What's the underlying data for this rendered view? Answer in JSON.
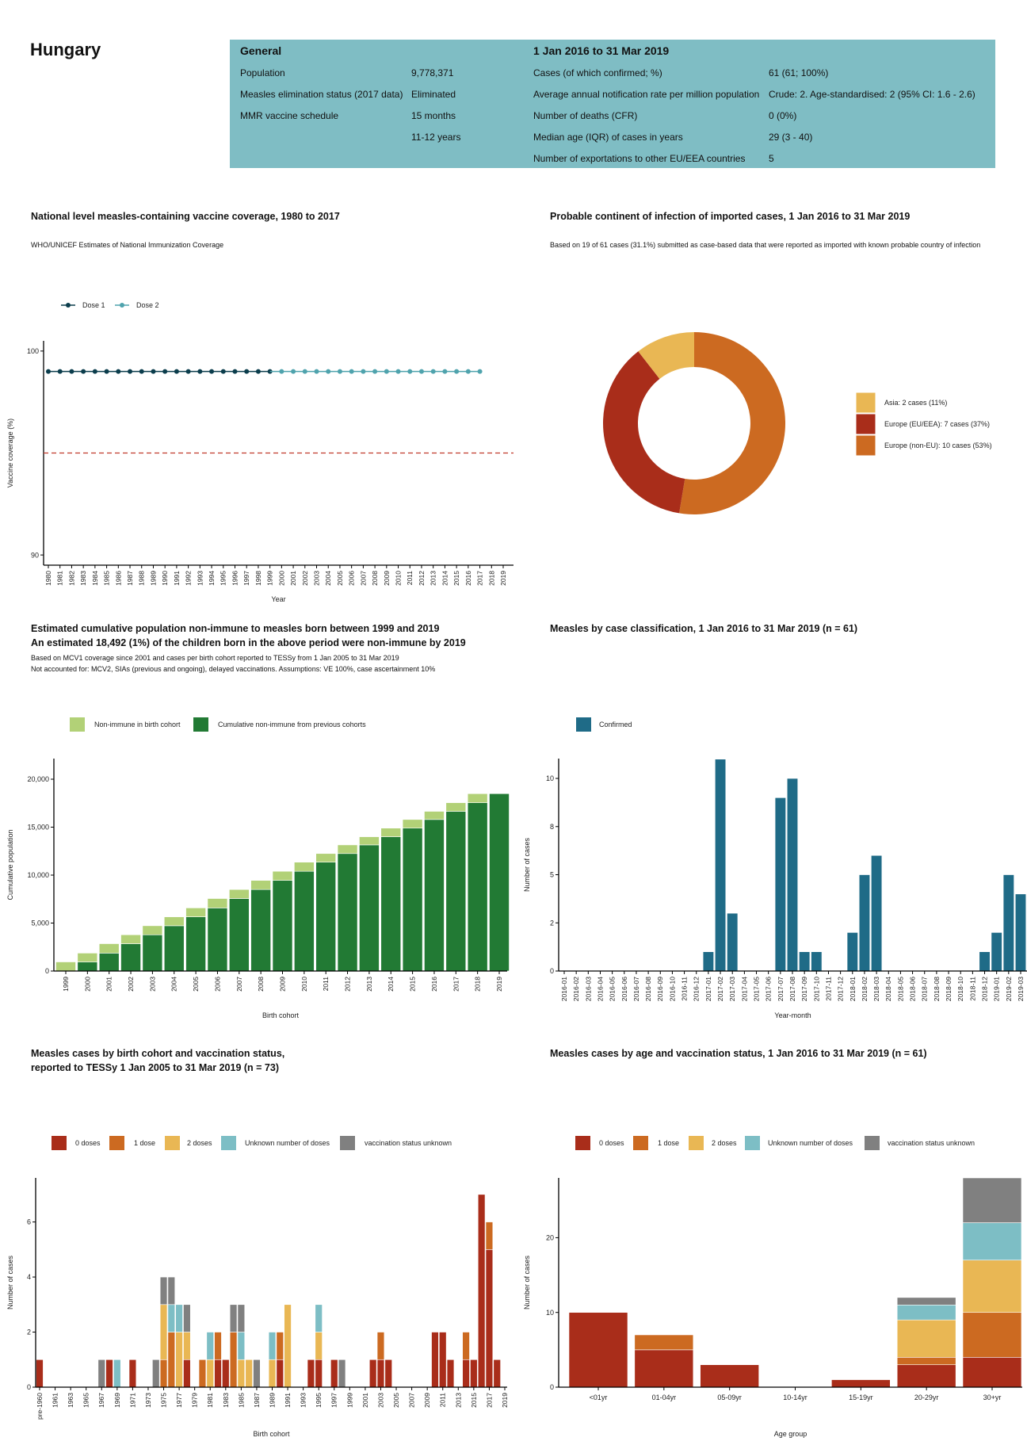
{
  "country": "Hungary",
  "info": {
    "general_header": "General",
    "period_header": "1 Jan 2016 to 31 Mar 2019",
    "general_rows": [
      {
        "label": "Population",
        "value": "9,778,371"
      },
      {
        "label": "Measles elimination status (2017 data)",
        "value": "Eliminated"
      },
      {
        "label": "MMR vaccine schedule",
        "value": "15 months"
      },
      {
        "label": "",
        "value": "11-12 years"
      }
    ],
    "period_rows": [
      {
        "label": "Cases (of which confirmed; %)",
        "value": "61 (61; 100%)"
      },
      {
        "label": "Average annual notification rate per million population",
        "value": "Crude: 2. Age-standardised: 2 (95% CI: 1.6 - 2.6)"
      },
      {
        "label": "Number of deaths (CFR)",
        "value": "0 (0%)"
      },
      {
        "label": "Median age (IQR) of cases in years",
        "value": "29 (3 - 40)"
      },
      {
        "label": "Number of exportations to other EU/EEA countries",
        "value": "5"
      }
    ],
    "bg_color": "#7fbdc4"
  },
  "chart_data": [
    {
      "type": "line",
      "title": "National level measles-containing vaccine coverage, 1980 to 2017",
      "subtitle": "WHO/UNICEF Estimates of National Immunization Coverage",
      "xlabel": "Year",
      "ylabel": "Vaccine coverage (%)",
      "ylim": [
        89.5,
        100.5
      ],
      "y_ticks": [
        90,
        100
      ],
      "y_tick_labels": [
        "90",
        "100"
      ],
      "x_tick_labels": [
        "1980",
        "1981",
        "1982",
        "1983",
        "1984",
        "1985",
        "1986",
        "1987",
        "1988",
        "1989",
        "1990",
        "1991",
        "1992",
        "1993",
        "1994",
        "1995",
        "1996",
        "1997",
        "1998",
        "1999",
        "2000",
        "2001",
        "2002",
        "2003",
        "2004",
        "2005",
        "2006",
        "2007",
        "2008",
        "2009",
        "2010",
        "2011",
        "2012",
        "2013",
        "2014",
        "2015",
        "2016",
        "2017",
        "2018",
        "2019"
      ],
      "reference_line": {
        "y": 95,
        "color": "#c0392b",
        "style": "dashed"
      },
      "legend_placement": "top-left",
      "series": [
        {
          "name": "Dose 1",
          "color": "#0b3d4c",
          "x": [
            1980,
            1981,
            1982,
            1983,
            1984,
            1985,
            1986,
            1987,
            1988,
            1989,
            1990,
            1991,
            1992,
            1993,
            1994,
            1995,
            1996,
            1997,
            1998,
            1999
          ],
          "y": [
            99,
            99,
            99,
            99,
            99,
            99,
            99,
            99,
            99,
            99,
            99,
            99,
            99,
            99,
            99,
            99,
            99,
            99,
            99,
            99
          ]
        },
        {
          "name": "Dose 2",
          "color": "#4fa3ad",
          "x": [
            2000,
            2001,
            2002,
            2003,
            2004,
            2005,
            2006,
            2007,
            2008,
            2009,
            2010,
            2011,
            2012,
            2013,
            2014,
            2015,
            2016,
            2017
          ],
          "y": [
            99,
            99,
            99,
            99,
            99,
            99,
            99,
            99,
            99,
            99,
            99,
            99,
            99,
            99,
            99,
            99,
            99,
            99
          ]
        }
      ]
    },
    {
      "type": "pie",
      "title": "Probable continent of infection of imported cases, 1 Jan 2016 to 31 Mar 2019",
      "subtitle": "Based on 19 of 61 cases (31.1%) submitted as case-based data that were reported as imported with known probable country of infection",
      "donut": true,
      "legend_placement": "right",
      "slices": [
        {
          "label": "Europe (non-EU): 10 cases (53%)",
          "value": 10,
          "color": "#cc6a21"
        },
        {
          "label": "Europe (EU/EEA): 7 cases (37%)",
          "value": 7,
          "color": "#a92d1a"
        },
        {
          "label": "Asia: 2 cases (11%)",
          "value": 2,
          "color": "#e9b754"
        }
      ],
      "legend_order": [
        2,
        1,
        0
      ]
    },
    {
      "type": "bar",
      "stacked": true,
      "title": "Estimated cumulative population non-immune to measles born between 1999 and 2019",
      "title2": "An estimated 18,492 (1%) of the children born in the above period were non-immune by 2019",
      "subtitle": "Based on MCV1 coverage since 2001 and cases per birth cohort reported to TESSy from 1 Jan 2005 to 31 Mar 2019",
      "subtitle2": "Not accounted for: MCV2, SIAs (previous and ongoing), delayed vaccinations. Assumptions: VE 100%, case ascertainment 10%",
      "xlabel": "Birth cohort",
      "ylabel": "Cumulative population",
      "ylim": [
        0,
        22150
      ],
      "y_ticks": [
        0,
        5000,
        10000,
        15000,
        20000
      ],
      "y_tick_labels": [
        "0",
        "5,000",
        "10,000",
        "15,000",
        "20,000"
      ],
      "legend_placement": "top-left",
      "categories": [
        "1999",
        "2000",
        "2001",
        "2002",
        "2003",
        "2004",
        "2005",
        "2006",
        "2007",
        "2008",
        "2009",
        "2010",
        "2011",
        "2012",
        "2013",
        "2014",
        "2015",
        "2016",
        "2017",
        "2018",
        "2019"
      ],
      "series": [
        {
          "name": "Cumulative non-immune from previous cohorts",
          "color": "#227a34",
          "values": [
            0,
            950,
            1870,
            2850,
            3780,
            4720,
            5650,
            6580,
            7560,
            8500,
            9450,
            10400,
            11350,
            12250,
            13150,
            14000,
            14900,
            15800,
            16650,
            17550,
            18492
          ]
        },
        {
          "name": "Non-immune in birth cohort",
          "color": "#b2d177",
          "values": [
            950,
            920,
            980,
            930,
            940,
            930,
            930,
            980,
            940,
            950,
            950,
            950,
            900,
            900,
            850,
            900,
            900,
            850,
            900,
            942,
            0
          ]
        }
      ],
      "legend_order": [
        1,
        0
      ]
    },
    {
      "type": "bar",
      "title": "Measles by case classification, 1 Jan 2016 to 31 Mar 2019 (n = 61)",
      "xlabel": "Year-month",
      "ylabel": "Number of cases",
      "ylim": [
        0,
        11.03
      ],
      "y_ticks": [
        0,
        2.5,
        5,
        7.5,
        10
      ],
      "y_tick_labels": [
        "0",
        "2",
        "5",
        "8",
        "10"
      ],
      "legend_placement": "top-left",
      "categories": [
        "2016-01",
        "2016-02",
        "2016-03",
        "2016-04",
        "2016-05",
        "2016-06",
        "2016-07",
        "2016-08",
        "2016-09",
        "2016-10",
        "2016-11",
        "2016-12",
        "2017-01",
        "2017-02",
        "2017-03",
        "2017-04",
        "2017-05",
        "2017-06",
        "2017-07",
        "2017-08",
        "2017-09",
        "2017-10",
        "2017-11",
        "2017-12",
        "2018-01",
        "2018-02",
        "2018-03",
        "2018-04",
        "2018-05",
        "2018-06",
        "2018-07",
        "2018-08",
        "2018-09",
        "2018-10",
        "2018-11",
        "2018-12",
        "2019-01",
        "2019-02",
        "2019-03"
      ],
      "series": [
        {
          "name": "Confirmed",
          "color": "#1f6b87",
          "values": [
            0,
            0,
            0,
            0,
            0,
            0,
            0,
            0,
            0,
            0,
            0,
            0,
            1,
            11,
            3,
            0,
            0,
            0,
            9,
            10,
            1,
            1,
            0,
            0,
            2,
            5,
            6,
            0,
            0,
            0,
            0,
            0,
            0,
            0,
            0,
            1,
            2,
            5,
            4
          ]
        }
      ]
    },
    {
      "type": "bar",
      "stacked": true,
      "title": "Measles cases by birth cohort and vaccination status,",
      "title2": "reported to TESSy 1 Jan 2005 to 31 Mar 2019 (n = 73)",
      "xlabel": "Birth cohort",
      "ylabel": "Number of cases",
      "ylim": [
        0,
        7.6
      ],
      "y_ticks": [
        0,
        2,
        4,
        6
      ],
      "y_tick_labels": [
        "0",
        "2",
        "4",
        "6"
      ],
      "legend_placement": "top-left",
      "categories": [
        "pre-1960",
        "1960",
        "1961",
        "1962",
        "1963",
        "1964",
        "1965",
        "1966",
        "1967",
        "1968",
        "1969",
        "1970",
        "1971",
        "1972",
        "1973",
        "1974",
        "1975",
        "1976",
        "1977",
        "1978",
        "1979",
        "1980",
        "1981",
        "1982",
        "1983",
        "1984",
        "1985",
        "1986",
        "1987",
        "1988",
        "1989",
        "1990",
        "1991",
        "1992",
        "1993",
        "1994",
        "1995",
        "1996",
        "1997",
        "1998",
        "1999",
        "2000",
        "2001",
        "2002",
        "2003",
        "2004",
        "2005",
        "2006",
        "2007",
        "2008",
        "2009",
        "2010",
        "2011",
        "2012",
        "2013",
        "2014",
        "2015",
        "2016",
        "2017",
        "2018",
        "2019"
      ],
      "tick_labels": [
        "pre-1960",
        "1961",
        "1963",
        "1965",
        "1967",
        "1969",
        "1971",
        "1973",
        "1975",
        "1977",
        "1979",
        "1981",
        "1983",
        "1985",
        "1987",
        "1989",
        "1991",
        "1993",
        "1995",
        "1997",
        "1999",
        "2001",
        "2003",
        "2005",
        "2007",
        "2009",
        "2011",
        "2013",
        "2015",
        "2017",
        "2019"
      ],
      "series": [
        {
          "name": "0 doses",
          "color": "#a92d1a",
          "values": [
            1,
            0,
            0,
            0,
            0,
            0,
            0,
            0,
            0,
            1,
            0,
            0,
            1,
            0,
            0,
            0,
            0,
            0,
            0,
            1,
            0,
            0,
            0,
            1,
            1,
            0,
            0,
            0,
            0,
            0,
            0,
            1,
            0,
            0,
            0,
            1,
            1,
            0,
            1,
            0,
            0,
            0,
            0,
            1,
            1,
            1,
            0,
            0,
            0,
            0,
            0,
            2,
            2,
            1,
            0,
            1,
            1,
            7,
            5,
            1,
            0
          ]
        },
        {
          "name": "1 dose",
          "color": "#cc6a21",
          "values": [
            0,
            0,
            0,
            0,
            0,
            0,
            0,
            0,
            0,
            0,
            0,
            0,
            0,
            0,
            0,
            0,
            1,
            2,
            0,
            0,
            0,
            1,
            0,
            1,
            0,
            2,
            0,
            0,
            0,
            0,
            0,
            1,
            0,
            0,
            0,
            0,
            0,
            0,
            0,
            0,
            0,
            0,
            0,
            0,
            1,
            0,
            0,
            0,
            0,
            0,
            0,
            0,
            0,
            0,
            0,
            1,
            0,
            0,
            1,
            0,
            0
          ]
        },
        {
          "name": "2 doses",
          "color": "#e9b754",
          "values": [
            0,
            0,
            0,
            0,
            0,
            0,
            0,
            0,
            0,
            0,
            0,
            0,
            0,
            0,
            0,
            0,
            2,
            0,
            2,
            1,
            0,
            0,
            1,
            0,
            0,
            0,
            1,
            1,
            0,
            0,
            1,
            0,
            3,
            0,
            0,
            0,
            1,
            0,
            0,
            0,
            0,
            0,
            0,
            0,
            0,
            0,
            0,
            0,
            0,
            0,
            0,
            0,
            0,
            0,
            0,
            0,
            0,
            0,
            0,
            0,
            0
          ]
        },
        {
          "name": "Unknown number of doses",
          "color": "#7dbec5",
          "values": [
            0,
            0,
            0,
            0,
            0,
            0,
            0,
            0,
            0,
            0,
            1,
            0,
            0,
            0,
            0,
            0,
            0,
            1,
            1,
            0,
            0,
            0,
            1,
            0,
            0,
            0,
            1,
            0,
            0,
            0,
            1,
            0,
            0,
            0,
            0,
            0,
            1,
            0,
            0,
            0,
            0,
            0,
            0,
            0,
            0,
            0,
            0,
            0,
            0,
            0,
            0,
            0,
            0,
            0,
            0,
            0,
            0,
            0,
            0,
            0,
            0
          ]
        },
        {
          "name": "vaccination status unknown",
          "color": "#808080",
          "values": [
            0,
            0,
            0,
            0,
            0,
            0,
            0,
            0,
            1,
            0,
            0,
            0,
            0,
            0,
            0,
            1,
            1,
            1,
            0,
            1,
            0,
            0,
            0,
            0,
            0,
            1,
            1,
            0,
            1,
            0,
            0,
            0,
            0,
            0,
            0,
            0,
            0,
            0,
            0,
            1,
            0,
            0,
            0,
            0,
            0,
            0,
            0,
            0,
            0,
            0,
            0,
            0,
            0,
            0,
            0,
            0,
            0,
            0,
            0,
            0,
            0
          ]
        }
      ]
    },
    {
      "type": "bar",
      "stacked": true,
      "title": "Measles cases by age and vaccination status, 1 Jan 2016 to 31 Mar 2019 (n = 61)",
      "xlabel": "Age group",
      "ylabel": "Number of cases",
      "ylim": [
        0,
        28
      ],
      "y_ticks": [
        0,
        10,
        20
      ],
      "y_tick_labels": [
        "0",
        "10",
        "20"
      ],
      "legend_placement": "top-left",
      "categories": [
        "<01yr",
        "01-04yr",
        "05-09yr",
        "10-14yr",
        "15-19yr",
        "20-29yr",
        "30+yr"
      ],
      "series": [
        {
          "name": "0 doses",
          "color": "#a92d1a",
          "values": [
            10,
            5,
            3,
            0,
            1,
            3,
            4
          ]
        },
        {
          "name": "1 dose",
          "color": "#cc6a21",
          "values": [
            0,
            2,
            0,
            0,
            0,
            1,
            6
          ]
        },
        {
          "name": "2 doses",
          "color": "#e9b754",
          "values": [
            0,
            0,
            0,
            0,
            0,
            5,
            7
          ]
        },
        {
          "name": "Unknown number of doses",
          "color": "#7dbec5",
          "values": [
            0,
            0,
            0,
            0,
            0,
            2,
            5
          ]
        },
        {
          "name": "vaccination status unknown",
          "color": "#808080",
          "values": [
            0,
            0,
            0,
            0,
            0,
            1,
            6
          ]
        }
      ]
    }
  ]
}
